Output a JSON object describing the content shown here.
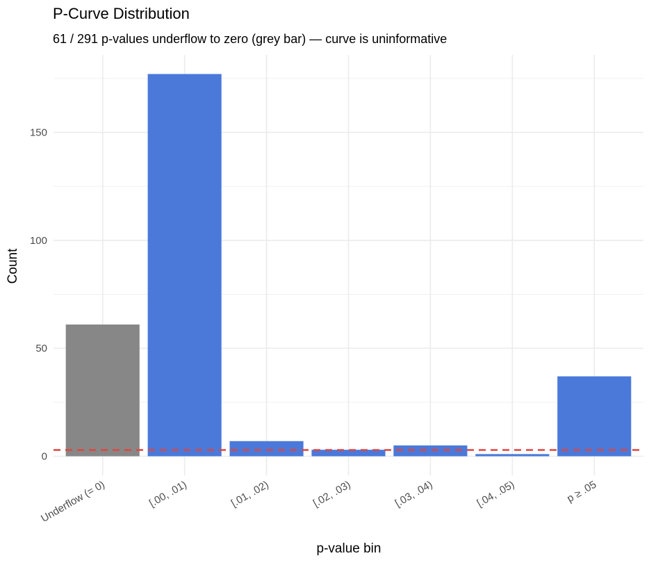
{
  "chart_data": {
    "type": "bar",
    "title": "P-Curve Distribution",
    "subtitle": "61 / 291 p-values underflow to zero (grey bar) — curve is uninformative",
    "x_label": "p-value bin",
    "y_label": "Count",
    "categories": [
      "Underflow (= 0)",
      "[.00, .01)",
      "[.01, .02)",
      "[.02, .03)",
      "[.03, .04)",
      "[.04, .05)",
      "p ≥ .05"
    ],
    "values": [
      61,
      177,
      7,
      3,
      5,
      1,
      37
    ],
    "colors": [
      "#878787",
      "#4a79da",
      "#4a79da",
      "#4a79da",
      "#4a79da",
      "#4a79da",
      "#4a79da"
    ],
    "reference_line": {
      "value": 2.91,
      "color": "#e0453f"
    },
    "ylim": [
      -8.85,
      185.85
    ],
    "yticks": [
      0,
      50,
      100,
      150
    ],
    "minor_yticks": [
      25,
      75,
      125,
      175
    ],
    "grid": true
  }
}
